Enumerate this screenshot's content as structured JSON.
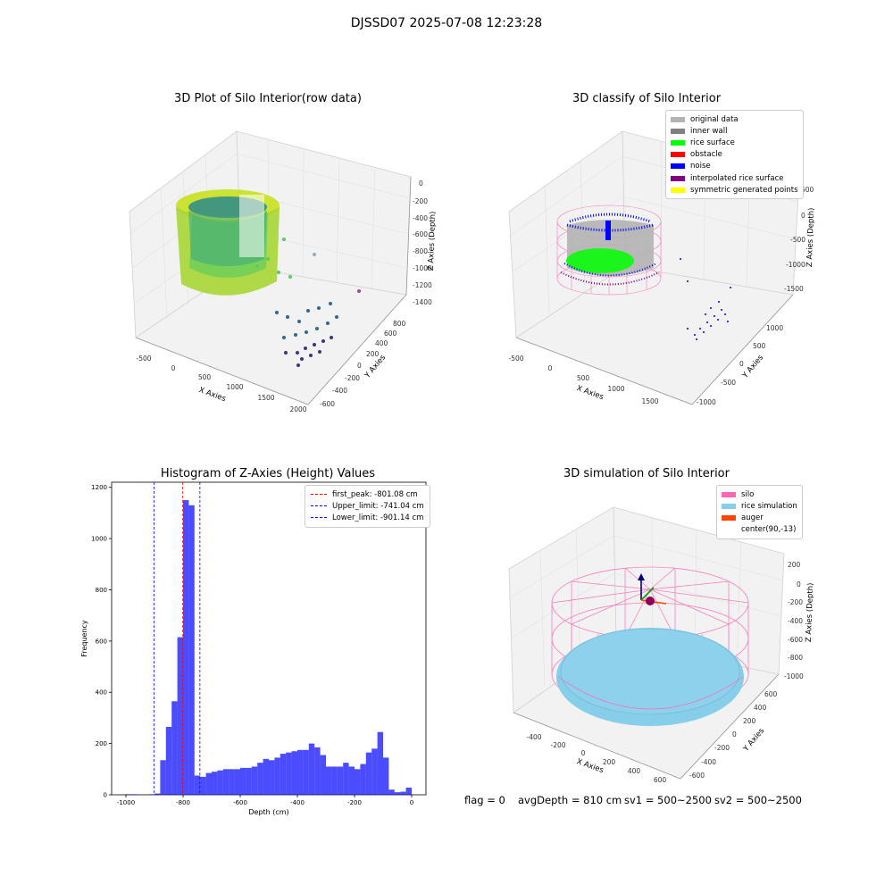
{
  "suptitle": "DJSSD07 2025-07-08 12:23:28",
  "panel1": {
    "title": "3D Plot of Silo Interior(row data)",
    "xlabel": "X Axies",
    "ylabel": "Y Axies",
    "zlabel": "Z Axies (Depth)",
    "xticks": [
      "-500",
      "0",
      "500",
      "1000",
      "1500",
      "2000"
    ],
    "yticks": [
      "-600",
      "-400",
      "-200",
      "0",
      "200",
      "400",
      "600",
      "800"
    ],
    "zticks": [
      "0",
      "-200",
      "-400",
      "-600",
      "-800",
      "-1000",
      "-1200",
      "-1400"
    ]
  },
  "panel2": {
    "title": "3D classify of Silo Interior",
    "xlabel": "X Axies",
    "ylabel": "Y Axies",
    "zlabel": "Z Axies (Depth)",
    "xticks": [
      "-500",
      "0",
      "500",
      "1000",
      "1500"
    ],
    "yticks": [
      "-1000",
      "-500",
      "0",
      "500",
      "1000"
    ],
    "zticks": [
      "500",
      "0",
      "-500",
      "-1000",
      "-1500"
    ],
    "legend": [
      {
        "label": "original data",
        "color": "#b3b3b3"
      },
      {
        "label": "inner wall",
        "color": "#808080"
      },
      {
        "label": "rice surface",
        "color": "#00ff00"
      },
      {
        "label": "obstacle",
        "color": "#ff0000"
      },
      {
        "label": "noise",
        "color": "#0000ff"
      },
      {
        "label": "interpolated rice surface",
        "color": "#800080"
      },
      {
        "label": "symmetric generated points",
        "color": "#ffff00"
      }
    ]
  },
  "panel3": {
    "title": "Histogram of Z-Axies (Height) Values",
    "legend": [
      {
        "label": "first_peak: -801.08 cm",
        "color": "#ff0000"
      },
      {
        "label": "Upper_limit: -741.04 cm",
        "color": "#0000ff"
      },
      {
        "label": "Lower_limit: -901.14 cm",
        "color": "#0000ff"
      }
    ]
  },
  "panel4": {
    "title": "3D simulation of Silo Interior",
    "xlabel": "X Axies",
    "ylabel": "Y Axies",
    "zlabel": "Z Axies (Depth)",
    "xticks": [
      "-400",
      "-200",
      "0",
      "200",
      "400",
      "600"
    ],
    "yticks": [
      "-600",
      "-400",
      "-200",
      "0",
      "200",
      "400",
      "600"
    ],
    "zticks": [
      "200",
      "0",
      "-200",
      "-400",
      "-600",
      "-800",
      "-1000"
    ],
    "legend": [
      {
        "label": "silo",
        "color": "#ff69b4"
      },
      {
        "label": "rice simulation",
        "color": "#87ceeb"
      },
      {
        "label": "auger",
        "color": "#ff4500"
      },
      {
        "label": "center(90,-13)",
        "color": "#ffffff"
      }
    ]
  },
  "footer": {
    "flag": "flag = 0",
    "avg": "avgDepth = 810 cm",
    "sv1": "sv1 = 500~2500",
    "sv2": "sv2 = 500~2500"
  },
  "chart_data": [
    {
      "type": "bar",
      "title": "Histogram of Z-Axies (Height) Values",
      "xlabel": "Depth (cm)",
      "ylabel": "Frequency",
      "xlim": [
        -1050,
        50
      ],
      "ylim": [
        0,
        1220
      ],
      "xticks": [
        -1000,
        -800,
        -600,
        -400,
        -200,
        0
      ],
      "yticks": [
        0,
        200,
        400,
        600,
        800,
        1000,
        1200
      ],
      "bin_width": 20,
      "bins": [
        {
          "x0": -1000,
          "v": 2
        },
        {
          "x0": -980,
          "v": 2
        },
        {
          "x0": -920,
          "v": 2
        },
        {
          "x0": -900,
          "v": 5
        },
        {
          "x0": -880,
          "v": 135
        },
        {
          "x0": -860,
          "v": 265
        },
        {
          "x0": -840,
          "v": 365
        },
        {
          "x0": -820,
          "v": 615
        },
        {
          "x0": -800,
          "v": 1150
        },
        {
          "x0": -780,
          "v": 1130
        },
        {
          "x0": -760,
          "v": 75
        },
        {
          "x0": -740,
          "v": 70
        },
        {
          "x0": -720,
          "v": 85
        },
        {
          "x0": -700,
          "v": 90
        },
        {
          "x0": -680,
          "v": 95
        },
        {
          "x0": -660,
          "v": 100
        },
        {
          "x0": -640,
          "v": 100
        },
        {
          "x0": -620,
          "v": 100
        },
        {
          "x0": -600,
          "v": 105
        },
        {
          "x0": -580,
          "v": 105
        },
        {
          "x0": -560,
          "v": 110
        },
        {
          "x0": -540,
          "v": 125
        },
        {
          "x0": -520,
          "v": 140
        },
        {
          "x0": -500,
          "v": 135
        },
        {
          "x0": -480,
          "v": 145
        },
        {
          "x0": -460,
          "v": 160
        },
        {
          "x0": -440,
          "v": 165
        },
        {
          "x0": -420,
          "v": 170
        },
        {
          "x0": -400,
          "v": 175
        },
        {
          "x0": -380,
          "v": 175
        },
        {
          "x0": -360,
          "v": 200
        },
        {
          "x0": -340,
          "v": 185
        },
        {
          "x0": -320,
          "v": 155
        },
        {
          "x0": -300,
          "v": 110
        },
        {
          "x0": -280,
          "v": 110
        },
        {
          "x0": -260,
          "v": 110
        },
        {
          "x0": -240,
          "v": 125
        },
        {
          "x0": -220,
          "v": 110
        },
        {
          "x0": -200,
          "v": 100
        },
        {
          "x0": -180,
          "v": 120
        },
        {
          "x0": -160,
          "v": 165
        },
        {
          "x0": -140,
          "v": 180
        },
        {
          "x0": -120,
          "v": 245
        },
        {
          "x0": -100,
          "v": 145
        },
        {
          "x0": -80,
          "v": 20
        },
        {
          "x0": -60,
          "v": 10
        },
        {
          "x0": -40,
          "v": 12
        },
        {
          "x0": -20,
          "v": 28
        }
      ],
      "bar_color": "#0000ff",
      "vlines": [
        {
          "x": -801.08,
          "color": "#ff0000"
        },
        {
          "x": -741.04,
          "color": "#0000ff"
        },
        {
          "x": -901.14,
          "color": "#0000ff"
        }
      ],
      "legend_position": "top-right"
    }
  ]
}
